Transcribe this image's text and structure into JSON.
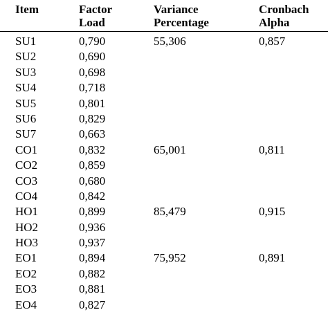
{
  "header": {
    "item": "Item",
    "factor_load": [
      "Factor",
      "Load"
    ],
    "variance": [
      "Variance",
      "Percentage"
    ],
    "cronbach": [
      "Cronbach",
      "Alpha"
    ]
  },
  "rows": [
    {
      "item": "SU1",
      "load": "0,790",
      "variance": "55,306",
      "alpha": "0,857"
    },
    {
      "item": "SU2",
      "load": "0,690",
      "variance": "",
      "alpha": ""
    },
    {
      "item": "SU3",
      "load": "0,698",
      "variance": "",
      "alpha": ""
    },
    {
      "item": "SU4",
      "load": "0,718",
      "variance": "",
      "alpha": ""
    },
    {
      "item": "SU5",
      "load": "0,801",
      "variance": "",
      "alpha": ""
    },
    {
      "item": "SU6",
      "load": "0,829",
      "variance": "",
      "alpha": ""
    },
    {
      "item": "SU7",
      "load": "0,663",
      "variance": "",
      "alpha": ""
    },
    {
      "item": "CO1",
      "load": "0,832",
      "variance": "65,001",
      "alpha": "0,811"
    },
    {
      "item": "CO2",
      "load": "0,859",
      "variance": "",
      "alpha": ""
    },
    {
      "item": "CO3",
      "load": "0,680",
      "variance": "",
      "alpha": ""
    },
    {
      "item": "CO4",
      "load": "0,842",
      "variance": "",
      "alpha": ""
    },
    {
      "item": "HO1",
      "load": "0,899",
      "variance": "85,479",
      "alpha": "0,915"
    },
    {
      "item": "HO2",
      "load": "0,936",
      "variance": "",
      "alpha": ""
    },
    {
      "item": "HO3",
      "load": "0,937",
      "variance": "",
      "alpha": ""
    },
    {
      "item": "EO1",
      "load": "0,894",
      "variance": "75,952",
      "alpha": "0,891"
    },
    {
      "item": "EO2",
      "load": "0,882",
      "variance": "",
      "alpha": ""
    },
    {
      "item": "EO3",
      "load": "0,881",
      "variance": "",
      "alpha": ""
    },
    {
      "item": "EO4",
      "load": "0,827",
      "variance": "",
      "alpha": ""
    }
  ]
}
